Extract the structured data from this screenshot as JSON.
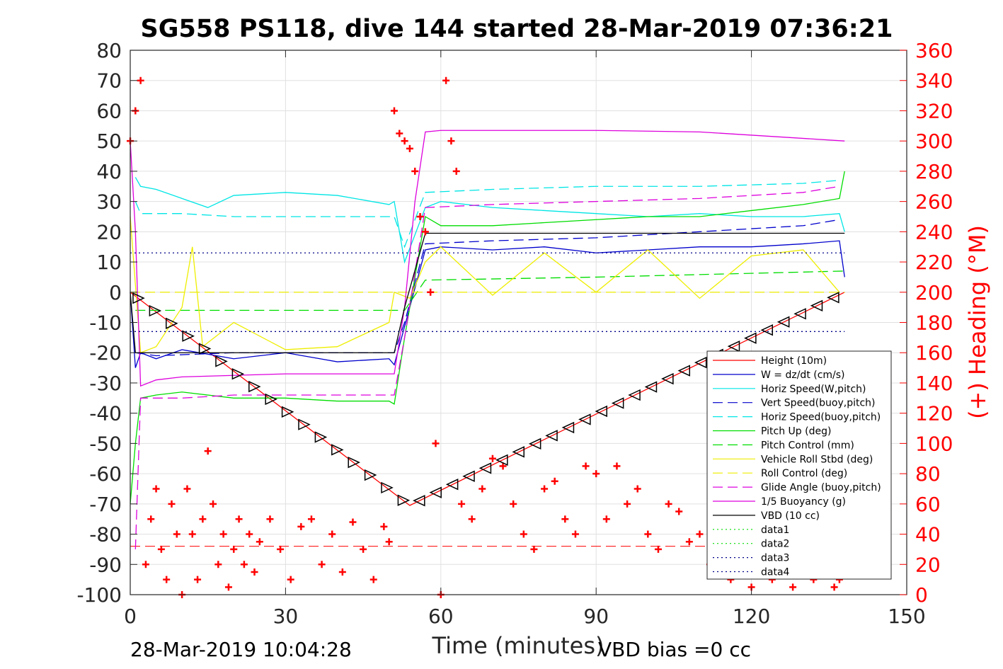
{
  "chart_data": {
    "type": "line",
    "title": "SG558 PS118, dive 144 started 28-Mar-2019 07:36:21",
    "xlabel": "Time (minutes)",
    "ylabel": "",
    "ylabel_right": "(+) Heading (°M)",
    "xlim": [
      0,
      150
    ],
    "ylim": [
      -100,
      80
    ],
    "ylim_right": [
      0,
      360
    ],
    "xticks": [
      0,
      30,
      60,
      90,
      120,
      150
    ],
    "yticks": [
      80,
      70,
      60,
      50,
      40,
      30,
      20,
      10,
      0,
      -10,
      -20,
      -30,
      -40,
      -50,
      -60,
      -70,
      -80,
      -90,
      -100
    ],
    "yticks_right": [
      360,
      340,
      320,
      300,
      280,
      260,
      240,
      220,
      200,
      180,
      160,
      140,
      120,
      100,
      80,
      60,
      40,
      20,
      0
    ],
    "grid": true,
    "legend_position": "bottom-right",
    "footer_left": "28-Mar-2019 10:04:28",
    "footer_right": "VBD bias =0 cc",
    "series": [
      {
        "name": "Height (10m)",
        "color": "#ff0000",
        "style": "solid",
        "x": [
          0,
          54,
          138
        ],
        "y": [
          0,
          -70.5,
          0
        ]
      },
      {
        "name": "W = dz/dt (cm/s)",
        "color": "#0000cc",
        "style": "solid",
        "x": [
          0,
          1,
          2,
          5,
          10,
          20,
          30,
          40,
          50,
          51,
          54,
          57,
          60,
          70,
          80,
          90,
          100,
          110,
          120,
          130,
          137,
          138
        ],
        "y": [
          0,
          -25,
          -20,
          -22,
          -19,
          -22,
          -20,
          -23,
          -22,
          -24,
          -5,
          14,
          15,
          14,
          15,
          13,
          14,
          15,
          15,
          16,
          17,
          5
        ]
      },
      {
        "name": "Horiz Speed(W,pitch)",
        "color": "#00e5e5",
        "style": "solid",
        "x": [
          1,
          2,
          5,
          10,
          15,
          20,
          30,
          40,
          50,
          51,
          53,
          57,
          60,
          70,
          80,
          90,
          100,
          110,
          120,
          130,
          137,
          138
        ],
        "y": [
          38,
          35,
          34,
          31,
          28,
          32,
          33,
          32,
          29,
          30,
          10,
          28,
          30,
          28,
          27,
          26,
          25,
          26,
          25,
          25,
          26,
          20
        ]
      },
      {
        "name": "Vert Speed(buoy,pitch)",
        "color": "#0000cc",
        "style": "dashed",
        "x": [
          1,
          5,
          20,
          35,
          51,
          53,
          57,
          70,
          90,
          110,
          130,
          137
        ],
        "y": [
          -20,
          -21,
          -20,
          -20,
          -20,
          -10,
          16,
          17,
          18,
          20,
          22,
          24
        ]
      },
      {
        "name": "Horiz Speed(buoy,pitch)",
        "color": "#00e5e5",
        "style": "dashed",
        "x": [
          1,
          2,
          10,
          20,
          35,
          51,
          53,
          57,
          70,
          90,
          110,
          130,
          137
        ],
        "y": [
          30,
          26,
          26,
          25,
          25,
          25,
          15,
          33,
          34,
          35,
          35,
          36,
          37
        ]
      },
      {
        "name": "Pitch Up (deg)",
        "color": "#00dd00",
        "style": "solid",
        "x": [
          0,
          1,
          2,
          5,
          10,
          20,
          30,
          40,
          50,
          51,
          53,
          57,
          60,
          70,
          80,
          90,
          100,
          110,
          120,
          130,
          137,
          138
        ],
        "y": [
          -70,
          -50,
          -35,
          -34,
          -33,
          -35,
          -35,
          -36,
          -36,
          -37,
          -15,
          25,
          22,
          22,
          23,
          24,
          25,
          25,
          27,
          29,
          31,
          40
        ]
      },
      {
        "name": "Pitch Control (mm)",
        "color": "#00dd00",
        "style": "dashed",
        "x": [
          1,
          5,
          51,
          53,
          57,
          90,
          138
        ],
        "y": [
          -6,
          -6,
          -6,
          -6,
          4,
          5,
          7
        ]
      },
      {
        "name": "Vehicle Roll Stbd (deg)",
        "color": "#eeee00",
        "style": "solid",
        "x": [
          0,
          2,
          5,
          10,
          12,
          14,
          20,
          30,
          40,
          50,
          51,
          54,
          57,
          60,
          70,
          80,
          90,
          100,
          110,
          120,
          130,
          137
        ],
        "y": [
          25,
          -20,
          -18,
          -5,
          15,
          -18,
          -10,
          -19,
          -18,
          -10,
          0,
          -2,
          10,
          15,
          -1,
          13,
          0,
          14,
          -2,
          12,
          14,
          0
        ]
      },
      {
        "name": "Roll Control (deg)",
        "color": "#eeee00",
        "style": "dashed",
        "x": [
          0,
          138
        ],
        "y": [
          0,
          0
        ]
      },
      {
        "name": "Glide Angle (buoy,pitch)",
        "color": "#dd00dd",
        "style": "dashed",
        "x": [
          1,
          2,
          10,
          20,
          35,
          51,
          53,
          57,
          70,
          90,
          110,
          130,
          137
        ],
        "y": [
          -85,
          -35,
          -35,
          -34,
          -34,
          -34,
          -15,
          28,
          29,
          30,
          31,
          33,
          35
        ]
      },
      {
        "name": "1/5 Buoyancy (g)",
        "color": "#dd00dd",
        "style": "solid",
        "x": [
          0,
          1,
          2,
          5,
          10,
          20,
          30,
          40,
          51,
          53,
          55,
          57,
          60,
          90,
          110,
          138
        ],
        "y": [
          50,
          20,
          -31,
          -29,
          -28,
          -27.5,
          -27,
          -27,
          -27,
          -5,
          30,
          53,
          53.5,
          53.5,
          53,
          50
        ]
      },
      {
        "name": "VBD (10 cc)",
        "color": "#000000",
        "style": "solid",
        "x": [
          0,
          1,
          51,
          53,
          57,
          60,
          138
        ],
        "y": [
          0,
          -20,
          -20,
          -5,
          19.5,
          19.5,
          19.5
        ]
      },
      {
        "name": "data1",
        "color": "#00dd00",
        "style": "dotted",
        "x": [],
        "y": []
      },
      {
        "name": "data2",
        "color": "#00dd00",
        "style": "dotted",
        "x": [],
        "y": []
      },
      {
        "name": "data3",
        "color": "#000088",
        "style": "dotted",
        "x": [
          0,
          138
        ],
        "y": [
          13,
          13
        ]
      },
      {
        "name": "data4",
        "color": "#000088",
        "style": "dotted",
        "x": [
          0,
          138
        ],
        "y": [
          -13,
          -13
        ]
      }
    ],
    "reference_line": {
      "color": "#ff0000",
      "style": "dashed",
      "x": [
        0,
        138
      ],
      "y": [
        -84,
        -84
      ]
    },
    "heading_series": {
      "color": "#ff0000",
      "marker": "plus",
      "axis": "right",
      "x": [
        0,
        1,
        2,
        3,
        4,
        5,
        6,
        7,
        8,
        9,
        10,
        11,
        12,
        13,
        14,
        15,
        16,
        17,
        18,
        19,
        20,
        21,
        22,
        23,
        24,
        25,
        27,
        29,
        31,
        33,
        35,
        37,
        39,
        41,
        43,
        45,
        47,
        49,
        50,
        51,
        52,
        53,
        54,
        55,
        56,
        57,
        58,
        59,
        60,
        61,
        62,
        63,
        64,
        66,
        68,
        70,
        72,
        74,
        76,
        78,
        80,
        82,
        84,
        86,
        88,
        90,
        92,
        94,
        96,
        98,
        100,
        102,
        104,
        106,
        108,
        110,
        112,
        114,
        116,
        118,
        120,
        122,
        124,
        126,
        128,
        130,
        132,
        134,
        136,
        137
      ],
      "y": [
        300,
        320,
        340,
        20,
        50,
        70,
        30,
        10,
        60,
        40,
        0,
        70,
        40,
        10,
        50,
        95,
        60,
        20,
        40,
        5,
        30,
        50,
        20,
        40,
        15,
        35,
        50,
        30,
        10,
        45,
        50,
        20,
        40,
        15,
        48,
        30,
        10,
        45,
        35,
        320,
        305,
        300,
        295,
        280,
        250,
        240,
        200,
        100,
        0,
        340,
        300,
        280,
        60,
        50,
        70,
        90,
        85,
        60,
        40,
        30,
        70,
        75,
        50,
        40,
        85,
        80,
        50,
        85,
        60,
        70,
        40,
        30,
        60,
        55,
        35,
        40,
        20,
        30,
        10,
        20,
        5,
        15,
        10,
        20,
        5,
        15,
        10,
        20,
        5,
        10
      ]
    }
  }
}
